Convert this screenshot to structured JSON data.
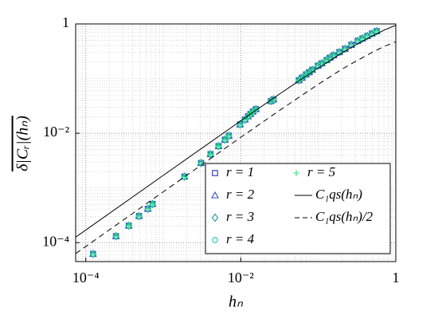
{
  "chart_data": {
    "type": "scatter",
    "xlabel": "hₙ",
    "ylabel": "δ|Cᵣ|(hₙ)",
    "xscale": "log",
    "yscale": "log",
    "grid": true,
    "minor_grid": true,
    "legend": "lower right",
    "xlim": [
      7.4e-05,
      1
    ],
    "ylim": [
      4.5e-05,
      1
    ],
    "xticks": [
      {
        "value": 0.0001,
        "label": "10⁻⁴"
      },
      {
        "value": 0.01,
        "label": "10⁻²"
      },
      1
    ],
    "yticks": [
      {
        "value": 0.0001,
        "label": "10⁻⁴"
      },
      {
        "value": 0.01,
        "label": "10⁻²"
      },
      1
    ],
    "x": [
      0.000124,
      0.000245,
      0.000358,
      0.000486,
      0.000631,
      0.000727,
      0.00187,
      0.00307,
      0.00407,
      0.00516,
      0.00624,
      0.00702,
      0.00977,
      0.0113,
      0.0124,
      0.0133,
      0.0143,
      0.0157,
      0.0245,
      0.0264,
      0.0561,
      0.0617,
      0.0694,
      0.0762,
      0.0838,
      0.0989,
      0.111,
      0.128,
      0.141,
      0.158,
      0.187,
      0.221,
      0.267,
      0.322,
      0.371,
      0.428,
      0.492,
      0.567
    ],
    "series": [
      {
        "name": "r = 1",
        "marker": "square",
        "color": "#2a2ab8",
        "values": [
          6.22e-05,
          0.000131,
          0.000204,
          0.000306,
          0.000415,
          0.000508,
          0.00161,
          0.00286,
          0.00415,
          0.00582,
          0.00763,
          0.00903,
          0.0145,
          0.0178,
          0.0204,
          0.0225,
          0.0249,
          0.0276,
          0.0388,
          0.0415,
          0.0935,
          0.104,
          0.119,
          0.131,
          0.145,
          0.172,
          0.19,
          0.218,
          0.241,
          0.267,
          0.305,
          0.35,
          0.415,
          0.491,
          0.543,
          0.601,
          0.667,
          0.738
        ]
      },
      {
        "name": "r = 2",
        "marker": "triangle",
        "color": "#2f4fc4",
        "values": [
          6.22e-05,
          0.000131,
          0.000204,
          0.000306,
          0.000415,
          0.000508,
          0.00161,
          0.00286,
          0.00415,
          0.00582,
          0.00763,
          0.00903,
          0.0145,
          0.0178,
          0.0204,
          0.0225,
          0.0249,
          0.0276,
          0.0388,
          0.0415,
          0.0935,
          0.104,
          0.119,
          0.131,
          0.145,
          0.172,
          0.19,
          0.218,
          0.241,
          0.267,
          0.305,
          0.35,
          0.415,
          0.491,
          0.543,
          0.601,
          0.667,
          0.738
        ]
      },
      {
        "name": "r = 3",
        "marker": "diamond",
        "color": "#1f9a9a",
        "values": [
          6.22e-05,
          0.000131,
          0.000204,
          0.000306,
          0.000415,
          0.000508,
          0.00161,
          0.00286,
          0.00415,
          0.00582,
          0.00763,
          0.00903,
          0.0145,
          0.0178,
          0.0204,
          0.0225,
          0.0249,
          0.0276,
          0.0388,
          0.0415,
          0.0935,
          0.104,
          0.119,
          0.131,
          0.145,
          0.172,
          0.19,
          0.218,
          0.241,
          0.267,
          0.305,
          0.35,
          0.415,
          0.491,
          0.543,
          0.601,
          0.667,
          0.738
        ]
      },
      {
        "name": "r = 4",
        "marker": "circle",
        "color": "#22c0b0",
        "values": [
          6.22e-05,
          0.000131,
          0.000204,
          0.000306,
          0.000415,
          0.000508,
          0.00161,
          0.00286,
          0.00415,
          0.00582,
          0.00763,
          0.00903,
          0.0145,
          0.0178,
          0.0204,
          0.0225,
          0.0249,
          0.0276,
          0.0388,
          0.0415,
          0.0935,
          0.104,
          0.119,
          0.131,
          0.145,
          0.172,
          0.19,
          0.218,
          0.241,
          0.267,
          0.305,
          0.35,
          0.415,
          0.491,
          0.543,
          0.601,
          0.667,
          0.738
        ]
      },
      {
        "name": "r = 5",
        "marker": "plus",
        "color": "#2ee07e",
        "values": [
          6.22e-05,
          0.000131,
          0.000204,
          0.000306,
          0.000415,
          0.000508,
          0.00161,
          0.00286,
          0.00415,
          0.00582,
          0.00763,
          0.00903,
          0.0145,
          0.0178,
          0.0204,
          0.0225,
          0.0249,
          0.0276,
          0.0388,
          0.0415,
          0.0935,
          0.104,
          0.119,
          0.131,
          0.145,
          0.172,
          0.19,
          0.218,
          0.241,
          0.267,
          0.305,
          0.35,
          0.415,
          0.491,
          0.543,
          0.601,
          0.667,
          0.738
        ]
      },
      {
        "name": "C₁qs(hₙ)",
        "line": "solid",
        "color": "#000000",
        "x": [
          7.4e-05,
          0.0001,
          0.001,
          0.01,
          0.03,
          0.1,
          0.2,
          0.3,
          0.5,
          0.7,
          1
        ],
        "values": [
          0.000126,
          0.00017,
          0.0017,
          0.0169,
          0.0497,
          0.157,
          0.293,
          0.41,
          0.607,
          0.767,
          0.944
        ]
      },
      {
        "name": "C₁qs(hₙ)/2",
        "line": "dashed",
        "color": "#000000",
        "x": [
          7.4e-05,
          0.0001,
          0.001,
          0.01,
          0.03,
          0.1,
          0.2,
          0.3,
          0.5,
          0.7,
          1
        ],
        "values": [
          6.3e-05,
          8.5e-05,
          0.00085,
          0.00845,
          0.0249,
          0.0787,
          0.147,
          0.205,
          0.304,
          0.384,
          0.472
        ]
      }
    ]
  }
}
